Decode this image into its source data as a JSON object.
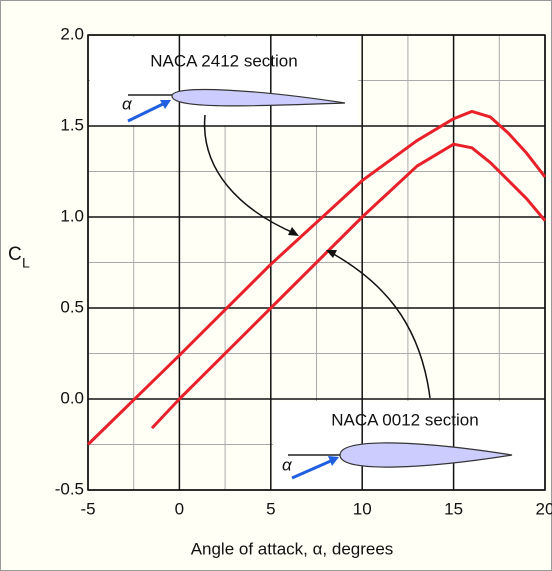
{
  "chart_data": {
    "type": "line",
    "xlabel": "Angle of attack, α, degrees",
    "ylabel": "C",
    "ylabel_subscript": "L",
    "xlim": [
      -5,
      20
    ],
    "ylim": [
      -0.5,
      2.0
    ],
    "xticks": [
      -5,
      0,
      5,
      10,
      15,
      20
    ],
    "yticks": [
      {
        "value": 2.0,
        "label": "2.0"
      },
      1.5,
      {
        "value": 1.0,
        "label": "1.0"
      },
      0.5,
      {
        "value": 0.0,
        "label": "0.0"
      },
      -0.5
    ],
    "grid": true,
    "alpha_symbols": [
      "α",
      "α"
    ],
    "series": [
      {
        "name": "NACA 2412 section",
        "color": "#e8202a",
        "x": [
          -5,
          0,
          5,
          10,
          13,
          15,
          16,
          17,
          18,
          19,
          20
        ],
        "values": [
          -0.25,
          0.24,
          0.74,
          1.2,
          1.42,
          1.54,
          1.58,
          1.55,
          1.46,
          1.35,
          1.22
        ]
      },
      {
        "name": "NACA 0012 section",
        "color": "#e8202a",
        "x": [
          -1.5,
          0,
          5,
          10,
          13,
          15,
          16,
          17,
          18,
          19,
          20
        ],
        "values": [
          -0.16,
          0,
          0.5,
          1.0,
          1.28,
          1.4,
          1.38,
          1.3,
          1.2,
          1.1,
          0.98
        ]
      }
    ]
  }
}
